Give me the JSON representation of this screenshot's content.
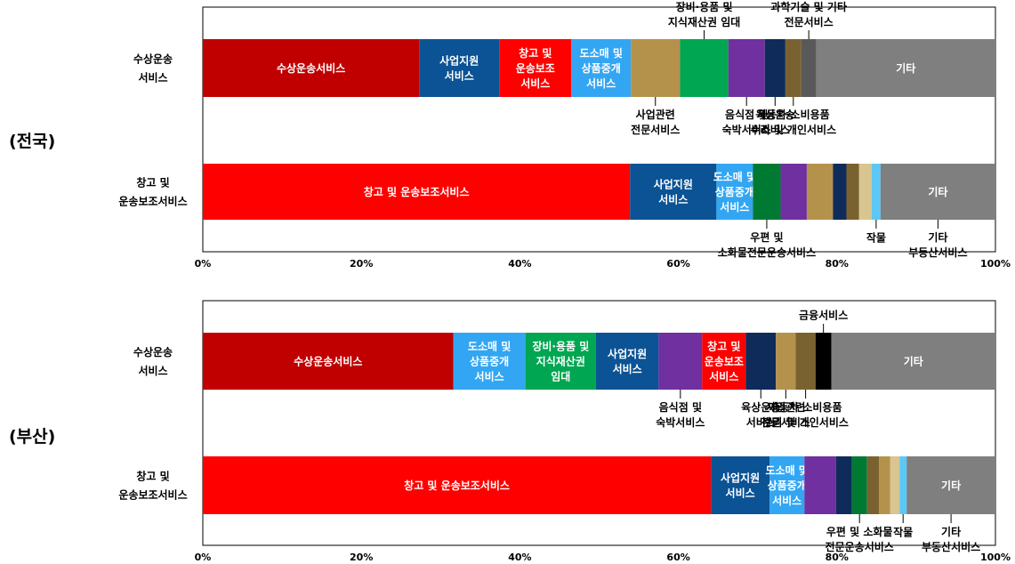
{
  "chart_data": [
    {
      "type": "bar",
      "orientation": "horizontal",
      "stacked": true,
      "title": "",
      "region_label": "(전국)",
      "xlabel": "",
      "ylabel": "",
      "xlim": [
        0,
        100
      ],
      "x_ticks": [
        "0%",
        "20%",
        "40%",
        "60%",
        "80%",
        "100%"
      ],
      "grid": false,
      "categories": [
        "수상운송\n서비스",
        "창고 및\n운송보조서비스"
      ],
      "rows": [
        {
          "segments": [
            {
              "name": "수상운송서비스",
              "value": 27.3,
              "color": "#C00000",
              "label": "수상운송서비스",
              "label_color": "#ffffff"
            },
            {
              "name": "사업지원서비스",
              "value": 10.1,
              "color": "#0B5394",
              "label": "사업지원\n서비스",
              "label_color": "#ffffff"
            },
            {
              "name": "창고 및 운송보조서비스",
              "value": 9.1,
              "color": "#FF0000",
              "label": "창고 및\n운송보조\n서비스",
              "label_color": "#ffffff"
            },
            {
              "name": "도소매 및 상품중개서비스",
              "value": 7.5,
              "color": "#33A6F3",
              "label": "도소매 및\n상품중개\n서비스",
              "label_color": "#ffffff"
            },
            {
              "name": "사업관련 전문서비스",
              "value": 6.2,
              "color": "#B5924C"
            },
            {
              "name": "장비·용품 및 지식재산권 임대",
              "value": 6.1,
              "color": "#00A651"
            },
            {
              "name": "음식점 및 숙박서비스",
              "value": 4.6,
              "color": "#7030A0"
            },
            {
              "name": "육상운송서비스",
              "value": 2.6,
              "color": "#0E2B5A"
            },
            {
              "name": "자동차·소비용품 수리 및 개인서비스",
              "value": 2.0,
              "color": "#7A6230"
            },
            {
              "name": "과학기술 및 기타 전문서비스",
              "value": 1.9,
              "color": "#595959"
            },
            {
              "name": "기타",
              "value": 22.6,
              "color": "#7F7F7F",
              "label": "기타",
              "label_color": "#ffffff"
            }
          ]
        },
        {
          "segments": [
            {
              "name": "창고 및 운송보조서비스",
              "value": 53.9,
              "color": "#FF0000",
              "label": "창고 및 운송보조서비스",
              "label_color": "#ffffff"
            },
            {
              "name": "사업지원서비스",
              "value": 10.9,
              "color": "#0B5394",
              "label": "사업지원\n서비스",
              "label_color": "#ffffff"
            },
            {
              "name": "도소매 및 상품중개서비스",
              "value": 4.6,
              "color": "#33A6F3",
              "label": "도소매 및\n상품중개\n서비스",
              "label_color": "#ffffff"
            },
            {
              "name": "우편 및 소화물전문운송서비스",
              "value": 3.5,
              "color": "#007A33"
            },
            {
              "name": "음식점 및 숙박서비스",
              "value": 3.3,
              "color": "#7030A0"
            },
            {
              "name": "사업관련 전문서비스",
              "value": 3.3,
              "color": "#B5924C"
            },
            {
              "name": "육상운송서비스",
              "value": 1.7,
              "color": "#0E2B5A"
            },
            {
              "name": "자동차·소비용품 수리 및 개인서비스",
              "value": 1.6,
              "color": "#7A6230"
            },
            {
              "name": "부동산서비스",
              "value": 1.6,
              "color": "#D9C58F"
            },
            {
              "name": "작물",
              "value": 1.1,
              "color": "#5BC8F5"
            },
            {
              "name": "기타",
              "value": 14.5,
              "color": "#7F7F7F",
              "label": "기타",
              "label_color": "#ffffff"
            }
          ]
        }
      ],
      "callouts": [
        {
          "row": 0,
          "side": "top",
          "segment": "장비·용품 및 지식재산권 임대",
          "text": "장비·용품 및\n지식재산권 임대"
        },
        {
          "row": 0,
          "side": "top",
          "segment": "과학기술 및 기타 전문서비스",
          "text": "과학기술 및 기타\n전문서비스"
        },
        {
          "row": 0,
          "side": "bottom",
          "segment": "사업관련 전문서비스",
          "text": "사업관련\n전문서비스"
        },
        {
          "row": 0,
          "side": "bottom",
          "segment": "음식점 및 숙박서비스",
          "text": "음식점 및\n숙박서비스"
        },
        {
          "row": 0,
          "side": "bottom",
          "segment": "육상운송서비스",
          "text": "육상운송\n서비스"
        },
        {
          "row": 0,
          "side": "bottom",
          "segment": "자동차·소비용품 수리 및 개인서비스",
          "text": "자동차·소비용품\n수리 및 개인서비스"
        },
        {
          "row": 1,
          "side": "bottom",
          "segment": "우편 및 소화물전문운송서비스",
          "text": "우편 및\n소화물전문운송서비스"
        },
        {
          "row": 1,
          "side": "bottom",
          "segment": "기타",
          "text": "기타\n부동산서비스"
        },
        {
          "row": 1,
          "side": "bottom",
          "segment": "작물",
          "text": "작물"
        }
      ]
    },
    {
      "type": "bar",
      "orientation": "horizontal",
      "stacked": true,
      "title": "",
      "region_label": "(부산)",
      "xlabel": "",
      "ylabel": "",
      "xlim": [
        0,
        100
      ],
      "x_ticks": [
        "0%",
        "20%",
        "40%",
        "60%",
        "80%",
        "100%"
      ],
      "grid": false,
      "categories": [
        "수상운송\n서비스",
        "창고 및\n운송보조서비스"
      ],
      "rows": [
        {
          "segments": [
            {
              "name": "수상운송서비스",
              "value": 31.6,
              "color": "#C00000",
              "label": "수상운송서비스",
              "label_color": "#ffffff"
            },
            {
              "name": "도소매 및 상품중개서비스",
              "value": 9.1,
              "color": "#33A6F3",
              "label": "도소매 및\n상품중개\n서비스",
              "label_color": "#ffffff"
            },
            {
              "name": "장비·용품 및 지식재산권 임대",
              "value": 8.9,
              "color": "#00A651",
              "label": "장비·용품 및\n지식재산권\n임대",
              "label_color": "#ffffff"
            },
            {
              "name": "사업지원서비스",
              "value": 7.9,
              "color": "#0B5394",
              "label": "사업지원\n서비스",
              "label_color": "#ffffff"
            },
            {
              "name": "음식점 및 숙박서비스",
              "value": 5.5,
              "color": "#7030A0"
            },
            {
              "name": "창고 및 운송보조서비스",
              "value": 5.5,
              "color": "#FF0000",
              "label": "창고 및\n운송보조\n서비스",
              "label_color": "#ffffff"
            },
            {
              "name": "육상운송서비스",
              "value": 3.8,
              "color": "#0E2B5A"
            },
            {
              "name": "사업관련 전문서비스",
              "value": 2.5,
              "color": "#B5924C"
            },
            {
              "name": "자동차·소비용품 수리 및 개인서비스",
              "value": 2.5,
              "color": "#7A6230"
            },
            {
              "name": "금융서비스",
              "value": 2.0,
              "color": "#000000"
            },
            {
              "name": "기타",
              "value": 20.7,
              "color": "#7F7F7F",
              "label": "기타",
              "label_color": "#ffffff"
            }
          ]
        },
        {
          "segments": [
            {
              "name": "창고 및 운송보조서비스",
              "value": 64.1,
              "color": "#FF0000",
              "label": "창고 및 운송보조서비스",
              "label_color": "#ffffff"
            },
            {
              "name": "사업지원서비스",
              "value": 7.4,
              "color": "#0B5394",
              "label": "사업지원\n서비스",
              "label_color": "#ffffff"
            },
            {
              "name": "도소매 및 상품중개서비스",
              "value": 4.4,
              "color": "#33A6F3",
              "label": "도소매 및\n상품중개\n서비스",
              "label_color": "#ffffff"
            },
            {
              "name": "음식점 및 숙박서비스",
              "value": 4.0,
              "color": "#7030A0"
            },
            {
              "name": "육상운송서비스",
              "value": 2.0,
              "color": "#0E2B5A"
            },
            {
              "name": "우편 및 소화물 전문운송서비스",
              "value": 1.9,
              "color": "#007A33"
            },
            {
              "name": "자동차·소비용품 수리 및 개인서비스",
              "value": 1.5,
              "color": "#7A6230"
            },
            {
              "name": "사업관련 전문서비스",
              "value": 1.4,
              "color": "#B5924C"
            },
            {
              "name": "부동산서비스",
              "value": 1.2,
              "color": "#D9C58F"
            },
            {
              "name": "작물",
              "value": 0.9,
              "color": "#5BC8F5"
            },
            {
              "name": "기타",
              "value": 11.2,
              "color": "#7F7F7F",
              "label": "기타",
              "label_color": "#ffffff"
            }
          ]
        }
      ],
      "callouts": [
        {
          "row": 0,
          "side": "top",
          "segment": "금융서비스",
          "text": "금융서비스"
        },
        {
          "row": 0,
          "side": "bottom",
          "segment": "음식점 및 숙박서비스",
          "text": "음식점 및\n숙박서비스"
        },
        {
          "row": 0,
          "side": "bottom",
          "segment": "육상운송서비스",
          "text": "육상운송\n서비스"
        },
        {
          "row": 0,
          "side": "bottom",
          "segment": "사업관련 전문서비스",
          "text": "사업관련\n전문서비스"
        },
        {
          "row": 0,
          "side": "bottom",
          "segment": "자동차·소비용품 수리 및 개인서비스",
          "text": "자동차·소비용품\n수리 및 개인서비스"
        },
        {
          "row": 1,
          "side": "bottom",
          "segment": "우편 및 소화물 전문운송서비스",
          "text": "우편 및 소화물\n전문운송서비스"
        },
        {
          "row": 1,
          "side": "bottom",
          "segment": "기타",
          "text": "기타\n부동산서비스"
        },
        {
          "row": 1,
          "side": "bottom",
          "segment": "작물",
          "text": "작물"
        }
      ]
    }
  ]
}
